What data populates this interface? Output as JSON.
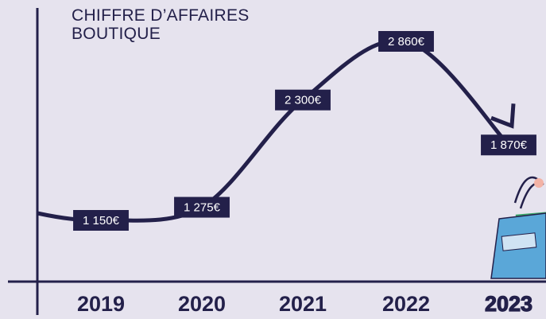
{
  "chart_data": {
    "type": "line",
    "title": "CHIFFRE D’AFFAIRES BOUTIQUE",
    "categories": [
      "2019",
      "2020",
      "2021",
      "2022",
      "2023"
    ],
    "values": [
      1150,
      1275,
      2300,
      2860,
      1870
    ],
    "value_labels": [
      "1 150€",
      "1 275€",
      "2 300€",
      "2 860€",
      "1 870€"
    ],
    "color": "#23204a"
  }
}
